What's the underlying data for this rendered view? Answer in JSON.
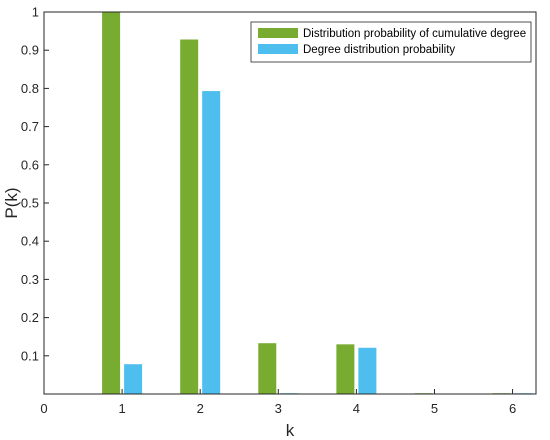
{
  "chart_data": {
    "type": "bar",
    "xlabel": "k",
    "ylabel": "P(k)",
    "xlim": [
      0,
      6.3
    ],
    "ylim": [
      0,
      1
    ],
    "x_ticks": [
      "0",
      "1",
      "2",
      "3",
      "4",
      "5",
      "6"
    ],
    "y_ticks": [
      "0.1",
      "0.2",
      "0.3",
      "0.4",
      "0.5",
      "0.6",
      "0.7",
      "0.8",
      "0.9",
      "1"
    ],
    "categories": [
      "1",
      "2",
      "3",
      "4",
      "5",
      "6"
    ],
    "grid": false,
    "legend_position": "top-right",
    "series": [
      {
        "name": "Distribution probability of cumulative degree",
        "color": "#77AC30",
        "values": [
          1.0,
          0.928,
          0.133,
          0.13,
          0.002,
          0.002
        ]
      },
      {
        "name": "Degree distribution probability",
        "color": "#4DBEEE",
        "values": [
          0.078,
          0.793,
          0.002,
          0.121,
          0.0,
          0.002
        ]
      }
    ]
  }
}
